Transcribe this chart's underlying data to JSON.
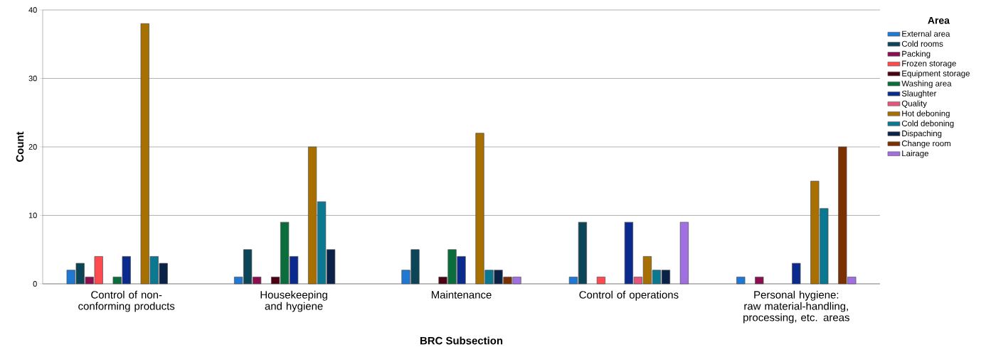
{
  "chart_data": {
    "type": "bar",
    "xlabel": "BRC Subsection",
    "ylabel": "Count",
    "legend_title": "Area",
    "categories": [
      "Control of non-conforming products",
      "Housekeeping and hygiene",
      "Maintenance",
      "Control of operations",
      "Personal hygiene: raw material-handling, processing, etc. areas"
    ],
    "series": [
      {
        "name": "External area",
        "color": "#1f78d4",
        "values": [
          2,
          1,
          2,
          1,
          1
        ]
      },
      {
        "name": "Cold rooms",
        "color": "#0b4557",
        "values": [
          3,
          5,
          5,
          9,
          null
        ]
      },
      {
        "name": "Packing",
        "color": "#8a0e50",
        "values": [
          1,
          1,
          null,
          null,
          1
        ]
      },
      {
        "name": "Frozen storage",
        "color": "#ff4b4f",
        "values": [
          4,
          null,
          null,
          1,
          null
        ]
      },
      {
        "name": "Equipment storage",
        "color": "#4a0012",
        "values": [
          null,
          1,
          1,
          null,
          null
        ]
      },
      {
        "name": "Washing area",
        "color": "#0a6e3c",
        "values": [
          1,
          9,
          5,
          null,
          null
        ]
      },
      {
        "name": "Slaughter",
        "color": "#0a2a8e",
        "values": [
          4,
          4,
          4,
          9,
          3
        ]
      },
      {
        "name": "Quality",
        "color": "#e8557c",
        "values": [
          null,
          null,
          null,
          1,
          null
        ]
      },
      {
        "name": "Hot deboning",
        "color": "#a87000",
        "values": [
          38,
          20,
          22,
          4,
          15
        ]
      },
      {
        "name": "Cold deboning",
        "color": "#0a7890",
        "values": [
          4,
          12,
          2,
          2,
          11
        ]
      },
      {
        "name": "Dispaching",
        "color": "#0a2248",
        "values": [
          3,
          5,
          2,
          2,
          null
        ]
      },
      {
        "name": "Change room",
        "color": "#7a3000",
        "values": [
          null,
          null,
          1,
          null,
          20
        ]
      },
      {
        "name": "Lairage",
        "color": "#a070e2",
        "values": [
          null,
          null,
          1,
          9,
          1
        ]
      }
    ],
    "ylim": [
      0,
      40
    ],
    "yticks": [
      0,
      10,
      20,
      30,
      40
    ],
    "grid": "y",
    "legend": "right"
  }
}
